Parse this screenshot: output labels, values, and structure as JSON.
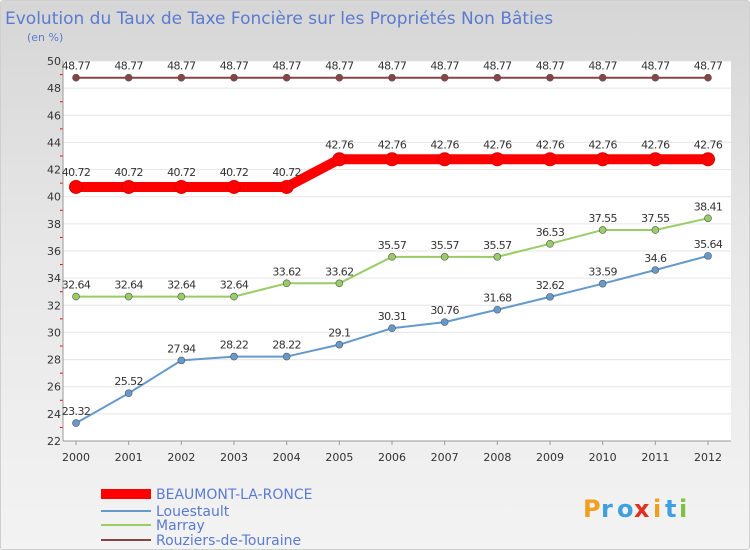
{
  "chart_data": {
    "type": "line",
    "title": "Evolution du Taux de Taxe Foncière sur les Propriétés Non Bâties",
    "unit_label": "(en %)",
    "xlabel": "",
    "ylabel": "",
    "ylim": [
      22,
      50
    ],
    "y_ticks": [
      22,
      24,
      26,
      28,
      30,
      32,
      34,
      36,
      38,
      40,
      42,
      44,
      46,
      48,
      50
    ],
    "grid": "horizontal",
    "categories": [
      "2000",
      "2001",
      "2002",
      "2003",
      "2004",
      "2005",
      "2006",
      "2007",
      "2008",
      "2009",
      "2010",
      "2011",
      "2012"
    ],
    "series": [
      {
        "name": "BEAUMONT-LA-RONCE",
        "color": "#ff0000",
        "values": [
          40.72,
          40.72,
          40.72,
          40.72,
          40.72,
          42.76,
          42.76,
          42.76,
          42.76,
          42.76,
          42.76,
          42.76,
          42.76
        ],
        "labels": [
          "40.72",
          "40.72",
          "40.72",
          "40.72",
          "40.72",
          "42.76",
          "42.76",
          "42.76",
          "42.76",
          "42.76",
          "42.76",
          "42.76",
          "42.76"
        ]
      },
      {
        "name": "Louestault",
        "color": "#6699cc",
        "values": [
          23.32,
          25.52,
          27.94,
          28.22,
          28.22,
          29.1,
          30.31,
          30.76,
          31.68,
          32.62,
          33.59,
          34.6,
          35.64
        ],
        "labels": [
          "23.32",
          "25.52",
          "27.94",
          "28.22",
          "28.22",
          "29.1",
          "30.31",
          "30.76",
          "31.68",
          "32.62",
          "33.59",
          "34.6",
          "35.64"
        ]
      },
      {
        "name": "Marray",
        "color": "#99cc66",
        "values": [
          32.64,
          32.64,
          32.64,
          32.64,
          33.62,
          33.62,
          35.57,
          35.57,
          35.57,
          36.53,
          37.55,
          37.55,
          38.41
        ],
        "labels": [
          "32.64",
          "32.64",
          "32.64",
          "32.64",
          "33.62",
          "33.62",
          "35.57",
          "35.57",
          "35.57",
          "36.53",
          "37.55",
          "37.55",
          "38.41"
        ]
      },
      {
        "name": "Rouziers-de-Touraine",
        "color": "#884444",
        "values": [
          48.77,
          48.77,
          48.77,
          48.77,
          48.77,
          48.77,
          48.77,
          48.77,
          48.77,
          48.77,
          48.77,
          48.77,
          48.77
        ],
        "labels": [
          "48.77",
          "48.77",
          "48.77",
          "48.77",
          "48.77",
          "48.77",
          "48.77",
          "48.77",
          "48.77",
          "48.77",
          "48.77",
          "48.77",
          "48.77"
        ]
      }
    ],
    "legend_position": "bottom-left"
  },
  "logo": {
    "letters": [
      "P",
      "r",
      "o",
      "x",
      "i",
      "t",
      "i"
    ],
    "colors": [
      "#f0a020",
      "#3ea0e0",
      "#3ea0e0",
      "#e03020",
      "#f0a020",
      "#3ea0e0",
      "#80c040"
    ]
  }
}
